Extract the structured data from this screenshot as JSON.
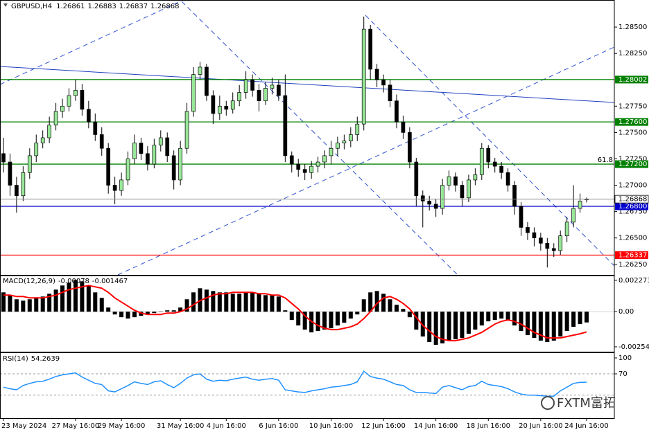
{
  "chart_data": [
    {
      "type": "candlestick",
      "symbol": "GBPUSD,H4",
      "categories": [
        "23 May 2024",
        null,
        null,
        null,
        null,
        null,
        null,
        null,
        null,
        null,
        null,
        "27 May 16:00",
        null,
        null,
        null,
        null,
        null,
        null,
        "29 May 16:00",
        null,
        null,
        null,
        null,
        null,
        null,
        null,
        null,
        "31 May 16:00",
        null,
        null,
        null,
        null,
        null,
        null,
        "4 Jun 16:00",
        null,
        null,
        null,
        null,
        null,
        null,
        null,
        "6 Jun 16:00",
        null,
        null,
        null,
        null,
        null,
        null,
        null,
        "10 Jun 16:00",
        null,
        null,
        null,
        null,
        null,
        null,
        null,
        "12 Jun 16:00",
        null,
        null,
        null,
        null,
        null,
        null,
        null,
        "14 Jun 16:00",
        null,
        null,
        null,
        null,
        null,
        null,
        null,
        "18 Jun 16:00",
        null,
        null,
        null,
        null,
        null,
        null,
        null,
        "20 Jun 16:00",
        null,
        null,
        null,
        null,
        null,
        null,
        "24 Jun 16:00"
      ],
      "open": [
        1.273,
        1.2722,
        1.27,
        1.269,
        1.2712,
        1.2728,
        1.274,
        1.2745,
        1.2757,
        1.277,
        1.2775,
        1.2785,
        1.279,
        1.2772,
        1.276,
        1.2748,
        1.2735,
        1.27,
        1.2695,
        1.2705,
        1.2725,
        1.274,
        1.273,
        1.272,
        1.2738,
        1.2745,
        1.2728,
        1.2705,
        1.2735,
        1.277,
        1.2805,
        1.2812,
        1.2785,
        1.2768,
        1.2775,
        1.2772,
        1.278,
        1.2788,
        1.28,
        1.279,
        1.278,
        1.2792,
        1.2795,
        1.2785,
        1.2728,
        1.272,
        1.2715,
        1.2712,
        1.2718,
        1.2722,
        1.2728,
        1.2735,
        1.274,
        1.2742,
        1.2748,
        1.2758,
        1.2848,
        1.281,
        1.28,
        1.2795,
        1.278,
        1.276,
        1.275,
        1.2722,
        1.269,
        1.2685,
        1.2682,
        1.2678,
        1.27,
        1.2708,
        1.27,
        1.2688,
        1.2705,
        1.271,
        1.2735,
        1.2722,
        1.2718,
        1.2712,
        1.27,
        1.268,
        1.266,
        1.2655,
        1.265,
        1.2645,
        1.264,
        1.2638,
        1.2652,
        1.2665,
        1.2678,
        1.26861
      ],
      "high": [
        1.2745,
        1.273,
        1.2708,
        1.2718,
        1.2735,
        1.2748,
        1.2752,
        1.2765,
        1.2778,
        1.2782,
        1.2792,
        1.28,
        1.2796,
        1.278,
        1.2768,
        1.2755,
        1.274,
        1.2708,
        1.2712,
        1.2732,
        1.2748,
        1.2745,
        1.2737,
        1.2744,
        1.2752,
        1.275,
        1.2733,
        1.2742,
        1.2778,
        1.2812,
        1.2817,
        1.2815,
        1.279,
        1.2785,
        1.278,
        1.2788,
        1.2795,
        1.2808,
        1.2805,
        1.2796,
        1.2798,
        1.2802,
        1.28,
        1.2805,
        1.2732,
        1.2725,
        1.272,
        1.2723,
        1.2727,
        1.2733,
        1.2742,
        1.2746,
        1.2748,
        1.2755,
        1.2765,
        1.286,
        1.2852,
        1.2815,
        1.2805,
        1.28,
        1.2786,
        1.2766,
        1.2755,
        1.2726,
        1.2695,
        1.269,
        1.2687,
        1.2706,
        1.2714,
        1.2712,
        1.2704,
        1.271,
        1.2716,
        1.274,
        1.2738,
        1.2726,
        1.2722,
        1.2716,
        1.2704,
        1.2684,
        1.2665,
        1.266,
        1.2655,
        1.265,
        1.2645,
        1.2657,
        1.267,
        1.27,
        1.2692,
        1.26883
      ],
      "low": [
        1.2712,
        1.269,
        1.2674,
        1.2685,
        1.2706,
        1.2722,
        1.2735,
        1.274,
        1.2752,
        1.2764,
        1.277,
        1.278,
        1.2766,
        1.2754,
        1.2742,
        1.2728,
        1.2692,
        1.2682,
        1.269,
        1.27,
        1.272,
        1.2724,
        1.2714,
        1.2716,
        1.2732,
        1.2722,
        1.2696,
        1.27,
        1.273,
        1.2765,
        1.28,
        1.278,
        1.2758,
        1.2762,
        1.2766,
        1.2768,
        1.2775,
        1.2782,
        1.2784,
        1.277,
        1.2776,
        1.2786,
        1.278,
        1.2722,
        1.2712,
        1.2708,
        1.2705,
        1.2706,
        1.2712,
        1.2716,
        1.272,
        1.2728,
        1.2734,
        1.2736,
        1.2742,
        1.2752,
        1.28,
        1.2793,
        1.2788,
        1.2774,
        1.2754,
        1.2744,
        1.2716,
        1.268,
        1.266,
        1.2676,
        1.267,
        1.2672,
        1.2695,
        1.2694,
        1.268,
        1.2684,
        1.27,
        1.2705,
        1.2716,
        1.2712,
        1.2706,
        1.2694,
        1.2672,
        1.2652,
        1.2648,
        1.2642,
        1.2638,
        1.2622,
        1.2632,
        1.2634,
        1.2646,
        1.266,
        1.2674,
        1.26837
      ],
      "close": [
        1.2722,
        1.27,
        1.269,
        1.2712,
        1.2728,
        1.274,
        1.2745,
        1.2757,
        1.277,
        1.2775,
        1.2785,
        1.279,
        1.2772,
        1.276,
        1.2748,
        1.2735,
        1.27,
        1.2695,
        1.2705,
        1.2725,
        1.274,
        1.273,
        1.272,
        1.2738,
        1.2745,
        1.2728,
        1.2705,
        1.2735,
        1.277,
        1.2805,
        1.2812,
        1.2785,
        1.2768,
        1.2775,
        1.2772,
        1.278,
        1.2788,
        1.28,
        1.279,
        1.278,
        1.2792,
        1.2795,
        1.2785,
        1.2728,
        1.272,
        1.2715,
        1.2712,
        1.2718,
        1.2722,
        1.2728,
        1.2735,
        1.274,
        1.2742,
        1.2748,
        1.2758,
        1.2848,
        1.281,
        1.28,
        1.2795,
        1.278,
        1.276,
        1.275,
        1.2722,
        1.269,
        1.2685,
        1.2682,
        1.2678,
        1.27,
        1.2708,
        1.27,
        1.2688,
        1.2705,
        1.271,
        1.2735,
        1.2722,
        1.2718,
        1.2712,
        1.27,
        1.268,
        1.266,
        1.2655,
        1.265,
        1.2645,
        1.264,
        1.2638,
        1.2652,
        1.2665,
        1.2678,
        1.2685,
        1.26868
      ],
      "colors": {
        "up": "#98e698",
        "down": "#000000"
      },
      "ylim": [
        1.2615,
        1.2875
      ],
      "yticks": [
        {
          "value": 1.285,
          "label": "1.28500"
        },
        {
          "value": 1.2825,
          "label": "1.28250"
        },
        {
          "value": 1.2775,
          "label": "1.27750"
        },
        {
          "value": 1.275,
          "label": "1.27500"
        },
        {
          "value": 1.2725,
          "label": "1.27250"
        },
        {
          "value": 1.27,
          "label": "1.27000"
        },
        {
          "value": 1.2675,
          "label": "1.26750"
        },
        {
          "value": 1.265,
          "label": "1.26500"
        },
        {
          "value": 1.2625,
          "label": "1.26250"
        }
      ],
      "hlines": [
        {
          "value": 1.28002,
          "label": "1.28002",
          "color": "#008000"
        },
        {
          "value": 1.276,
          "label": "1.27600",
          "color": "#008000"
        },
        {
          "value": 1.272,
          "label": "1.27200",
          "color": "#008000"
        },
        {
          "value": 1.268,
          "label": "1.26800",
          "color": "#0000cd"
        },
        {
          "value": 1.26337,
          "label": "1.26337",
          "color": "#ff0000"
        }
      ],
      "fib_label": "61.8"
    },
    {
      "type": "macd",
      "title": "MACD(12,26,9)",
      "histogram": [
        0.0014,
        0.0012,
        0.0009,
        0.0008,
        0.0009,
        0.001,
        0.0011,
        0.0013,
        0.0016,
        0.0019,
        0.0021,
        0.0023,
        0.0022,
        0.0019,
        0.0014,
        0.001,
        0.0003,
        -0.0002,
        -0.0004,
        -0.0005,
        -0.0004,
        -0.0003,
        -0.0002,
        -0.0001,
        0.0,
        0.0001,
        0.0001,
        0.0003,
        0.0009,
        0.0014,
        0.0017,
        0.0016,
        0.0015,
        0.0014,
        0.0014,
        0.0013,
        0.0013,
        0.0014,
        0.0014,
        0.0013,
        0.0012,
        0.0012,
        0.0011,
        0.0001,
        -0.0006,
        -0.001,
        -0.0013,
        -0.0015,
        -0.0014,
        -0.0013,
        -0.0012,
        -0.001,
        -0.0008,
        -0.0005,
        -0.0002,
        0.0009,
        0.0014,
        0.0015,
        0.0013,
        0.0009,
        0.0005,
        0.0002,
        -0.0004,
        -0.0013,
        -0.0018,
        -0.0022,
        -0.0024,
        -0.0023,
        -0.0021,
        -0.002,
        -0.0019,
        -0.0016,
        -0.0013,
        -0.001,
        -0.0007,
        -0.0006,
        -0.0005,
        -0.0006,
        -0.001,
        -0.0014,
        -0.0017,
        -0.0019,
        -0.0021,
        -0.0022,
        -0.0021,
        -0.0018,
        -0.0014,
        -0.0011,
        -0.0009,
        -0.00078
      ],
      "signal": [
        0.0012,
        0.0012,
        0.0011,
        0.0011,
        0.001,
        0.001,
        0.001,
        0.0011,
        0.0012,
        0.0014,
        0.0016,
        0.0017,
        0.0018,
        0.0019,
        0.0018,
        0.0017,
        0.0014,
        0.001,
        0.0007,
        0.0004,
        0.0001,
        -0.0001,
        -0.0002,
        -0.0002,
        -0.0002,
        -0.0001,
        -0.0001,
        0.0,
        0.0002,
        0.0005,
        0.0008,
        0.001,
        0.0012,
        0.0013,
        0.0013,
        0.0014,
        0.0014,
        0.0014,
        0.0014,
        0.0013,
        0.0013,
        0.0012,
        0.0012,
        0.001,
        0.0006,
        0.0002,
        -0.0003,
        -0.0007,
        -0.001,
        -0.0012,
        -0.0013,
        -0.0013,
        -0.0012,
        -0.0011,
        -0.0009,
        -0.0005,
        0.0,
        0.0006,
        0.001,
        0.0011,
        0.0009,
        0.0006,
        0.0002,
        -0.0004,
        -0.001,
        -0.0014,
        -0.0018,
        -0.002,
        -0.0021,
        -0.0021,
        -0.002,
        -0.0019,
        -0.0017,
        -0.0015,
        -0.0012,
        -0.0009,
        -0.0007,
        -0.0006,
        -0.0007,
        -0.0009,
        -0.0012,
        -0.0015,
        -0.0017,
        -0.0019,
        -0.0019,
        -0.0019,
        -0.0018,
        -0.0017,
        -0.0016,
        -0.001467
      ],
      "colors": {
        "histogram": "#000000",
        "signal": "#ff0000"
      },
      "ylim": [
        -0.0029,
        0.00257
      ],
      "yticks": [
        0.002273,
        {
          "value": 0,
          "label": "0.00"
        },
        -0.002547
      ]
    },
    {
      "type": "line",
      "title": "RSI(14)",
      "values": [
        45,
        42,
        40,
        48,
        52,
        55,
        56,
        60,
        65,
        68,
        70,
        72,
        64,
        58,
        52,
        50,
        38,
        36,
        42,
        48,
        55,
        52,
        50,
        55,
        57,
        50,
        44,
        52,
        62,
        68,
        70,
        60,
        56,
        58,
        57,
        60,
        62,
        64,
        60,
        58,
        60,
        61,
        58,
        40,
        38,
        36,
        35,
        38,
        40,
        42,
        45,
        46,
        48,
        50,
        55,
        75,
        65,
        62,
        60,
        55,
        50,
        48,
        40,
        35,
        35,
        34,
        33,
        45,
        48,
        44,
        40,
        46,
        48,
        56,
        50,
        48,
        46,
        42,
        36,
        32,
        30,
        30,
        29,
        28,
        28,
        38,
        45,
        52,
        54,
        54.2639
      ],
      "color": "#1e90ff",
      "ylim": [
        -13.4,
        109.1
      ],
      "yticks": [
        100,
        70
      ],
      "levels": [
        70,
        30
      ]
    }
  ],
  "watermark": "FXTM富拓"
}
